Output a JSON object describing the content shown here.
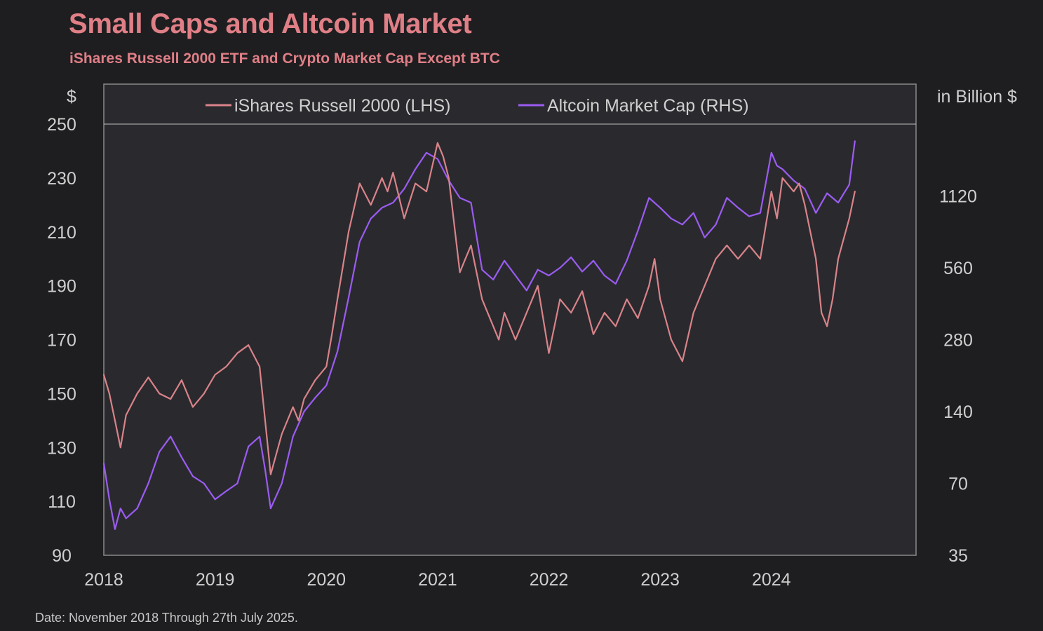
{
  "header": {
    "title": "Small Caps and Altcoin Market",
    "subtitle": "iShares Russell 2000 ETF and Crypto Market Cap Except BTC"
  },
  "footer": {
    "note": "Date: November 2018 Through 27th July 2025."
  },
  "colors": {
    "background": "#1e1e21",
    "plot_background": "#2a2a2e",
    "title": "#e07f86",
    "russell": "#d9838a",
    "altcoin": "#9b5cf2",
    "axis_text": "#cfcfcf",
    "frame": "#8a8a8a"
  },
  "chart_data": {
    "type": "line",
    "title": "Small Caps and Altcoin Market",
    "subtitle": "iShares Russell 2000 ETF and Crypto Market Cap Except BTC",
    "left_axis": {
      "label": "$",
      "range": [
        90,
        250
      ],
      "ticks": [
        90,
        110,
        130,
        150,
        170,
        190,
        210,
        230,
        250
      ],
      "tick_labels": [
        "90",
        "110",
        "130",
        "150",
        "170",
        "190",
        "210",
        "230",
        "250"
      ]
    },
    "right_axis": {
      "label": "in Billion $",
      "scale": "log2",
      "range": [
        35,
        2240
      ],
      "ticks": [
        35,
        70,
        140,
        280,
        560,
        1120
      ],
      "tick_labels": [
        "35",
        "70",
        "140",
        "280",
        "560",
        "1120"
      ]
    },
    "x_axis": {
      "range": [
        2018.0,
        2025.3
      ],
      "ticks": [
        2018,
        2019,
        2020,
        2021,
        2022,
        2023,
        2024
      ],
      "tick_labels": [
        "2018",
        "2019",
        "2020",
        "2021",
        "2022",
        "2023",
        "2024"
      ]
    },
    "legend": {
      "position": "top",
      "placement_note": "inside plot, top band"
    },
    "series": [
      {
        "name": "iShares Russell 2000 (LHS)",
        "axis": "left",
        "color": "#d9838a",
        "x": [
          2018.0,
          2018.05,
          2018.1,
          2018.15,
          2018.2,
          2018.3,
          2018.4,
          2018.5,
          2018.6,
          2018.7,
          2018.8,
          2018.9,
          2019.0,
          2019.1,
          2019.2,
          2019.3,
          2019.4,
          2019.5,
          2019.6,
          2019.7,
          2019.75,
          2019.8,
          2019.9,
          2020.0,
          2020.05,
          2020.1,
          2020.2,
          2020.3,
          2020.4,
          2020.5,
          2020.55,
          2020.6,
          2020.7,
          2020.8,
          2020.9,
          2021.0,
          2021.05,
          2021.1,
          2021.2,
          2021.25,
          2021.3,
          2021.4,
          2021.5,
          2021.55,
          2021.6,
          2021.7,
          2021.8,
          2021.9,
          2022.0,
          2022.05,
          2022.1,
          2022.2,
          2022.3,
          2022.4,
          2022.5,
          2022.6,
          2022.7,
          2022.8,
          2022.9,
          2022.95,
          2023.0,
          2023.1,
          2023.2,
          2023.3,
          2023.4,
          2023.5,
          2023.6,
          2023.7,
          2023.8,
          2023.9,
          2024.0,
          2024.05,
          2024.1,
          2024.2,
          2024.25,
          2024.3,
          2024.4,
          2024.45,
          2024.5,
          2024.55,
          2024.6,
          2024.7,
          2024.75
        ],
        "values": [
          157,
          150,
          140,
          130,
          142,
          150,
          156,
          150,
          148,
          155,
          145,
          150,
          157,
          160,
          165,
          168,
          160,
          120,
          135,
          145,
          140,
          148,
          155,
          160,
          172,
          185,
          210,
          228,
          220,
          230,
          225,
          232,
          215,
          228,
          225,
          243,
          238,
          230,
          195,
          200,
          205,
          185,
          175,
          170,
          180,
          170,
          180,
          190,
          165,
          175,
          185,
          180,
          188,
          172,
          180,
          175,
          185,
          178,
          190,
          200,
          185,
          170,
          162,
          180,
          190,
          200,
          205,
          200,
          205,
          200,
          225,
          215,
          230,
          225,
          228,
          220,
          200,
          180,
          175,
          185,
          200,
          215,
          225
        ]
      },
      {
        "name": "Altcoin Market Cap (RHS)",
        "axis": "right",
        "color": "#9b5cf2",
        "x": [
          2018.0,
          2018.05,
          2018.1,
          2018.15,
          2018.2,
          2018.3,
          2018.4,
          2018.5,
          2018.6,
          2018.7,
          2018.8,
          2018.9,
          2019.0,
          2019.1,
          2019.2,
          2019.3,
          2019.4,
          2019.45,
          2019.5,
          2019.6,
          2019.7,
          2019.8,
          2019.9,
          2020.0,
          2020.1,
          2020.2,
          2020.3,
          2020.4,
          2020.5,
          2020.6,
          2020.7,
          2020.8,
          2020.9,
          2021.0,
          2021.1,
          2021.2,
          2021.3,
          2021.4,
          2021.5,
          2021.6,
          2021.7,
          2021.8,
          2021.9,
          2022.0,
          2022.1,
          2022.2,
          2022.3,
          2022.4,
          2022.5,
          2022.6,
          2022.7,
          2022.8,
          2022.9,
          2023.0,
          2023.1,
          2023.2,
          2023.3,
          2023.4,
          2023.5,
          2023.6,
          2023.7,
          2023.8,
          2023.9,
          2024.0,
          2024.05,
          2024.1,
          2024.2,
          2024.3,
          2024.4,
          2024.5,
          2024.6,
          2024.7,
          2024.75
        ],
        "values": [
          85,
          60,
          45,
          55,
          50,
          55,
          70,
          95,
          110,
          90,
          75,
          70,
          60,
          65,
          70,
          100,
          110,
          80,
          55,
          70,
          110,
          140,
          160,
          180,
          250,
          420,
          720,
          900,
          1000,
          1050,
          1200,
          1450,
          1700,
          1600,
          1300,
          1100,
          1050,
          550,
          500,
          600,
          520,
          450,
          550,
          520,
          560,
          620,
          540,
          600,
          520,
          480,
          600,
          800,
          1100,
          1000,
          900,
          850,
          950,
          750,
          850,
          1100,
          1000,
          920,
          950,
          1700,
          1500,
          1450,
          1300,
          1200,
          950,
          1150,
          1050,
          1250,
          1900
        ]
      }
    ]
  }
}
